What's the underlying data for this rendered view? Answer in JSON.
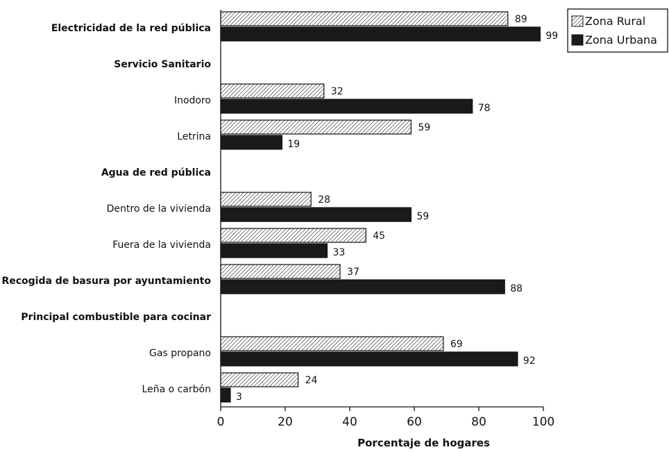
{
  "chart_data": {
    "type": "bar",
    "orientation": "horizontal",
    "xlabel": "Porcentaje de hogares",
    "xlim": [
      0,
      100
    ],
    "xticks": [
      0,
      20,
      40,
      60,
      80,
      100
    ],
    "legend_position": "top-right",
    "grid": false,
    "series": [
      {
        "name": "Zona Rural",
        "pattern": "diagonal-hatch",
        "color": "#ffffff"
      },
      {
        "name": "Zona Urbana",
        "pattern": "solid",
        "color": "#1a1a1a"
      }
    ],
    "rows": [
      {
        "label": "Electricidad de la red pública",
        "bold": true,
        "rural": 89,
        "urbana": 99
      },
      {
        "label": "Servicio Sanitario",
        "bold": true
      },
      {
        "label": "Inodoro",
        "bold": false,
        "rural": 32,
        "urbana": 78
      },
      {
        "label": "Letrina",
        "bold": false,
        "rural": 59,
        "urbana": 19
      },
      {
        "label": "Agua de red pública",
        "bold": true
      },
      {
        "label": "Dentro de la vivienda",
        "bold": false,
        "rural": 28,
        "urbana": 59
      },
      {
        "label": "Fuera de la vivienda",
        "bold": false,
        "rural": 45,
        "urbana": 33
      },
      {
        "label": "Recogida de basura por ayuntamiento",
        "bold": true,
        "rural": 37,
        "urbana": 88
      },
      {
        "label": "Principal combustible para cocinar",
        "bold": true
      },
      {
        "label": "Gas propano",
        "bold": false,
        "rural": 69,
        "urbana": 92
      },
      {
        "label": "Leña o carbón",
        "bold": false,
        "rural": 24,
        "urbana": 3
      }
    ]
  }
}
